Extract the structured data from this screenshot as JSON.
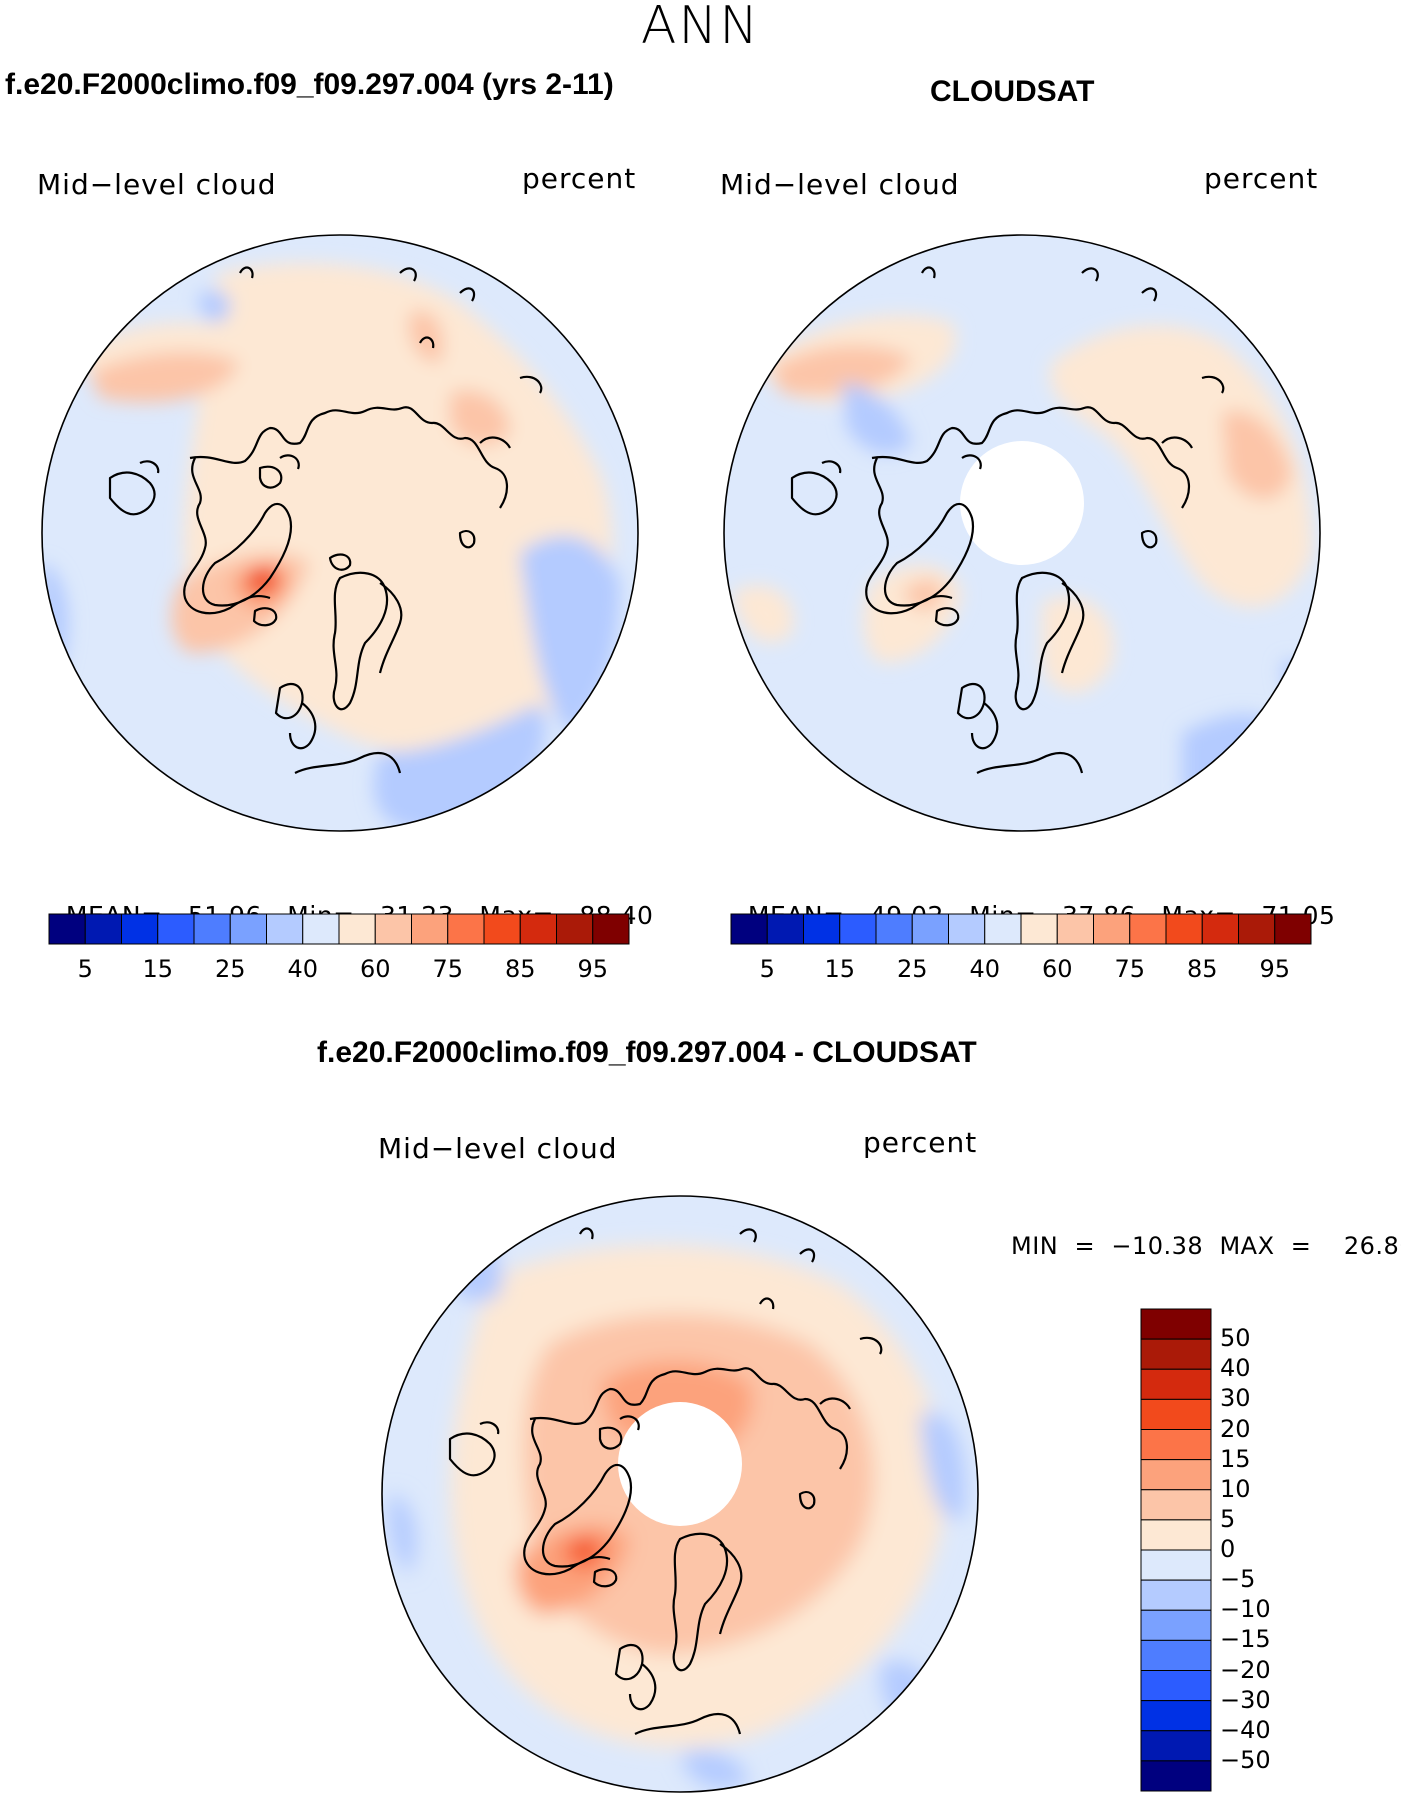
{
  "season": "ANN",
  "panels": [
    {
      "title": "f.e20.F2000climo.f09_f09.297.004 (yrs 2-11)",
      "variable": "Mid−level cloud",
      "units": "percent",
      "stats": {
        "mean_label": "MEAN=",
        "mean": "51.96",
        "min_label": "Min=",
        "min": "31.23",
        "max_label": "Max=",
        "max": "88.40"
      },
      "hole": false
    },
    {
      "title": "CLOUDSAT",
      "variable": "Mid−level cloud",
      "units": "percent",
      "stats": {
        "mean_label": "MEAN=",
        "mean": "49.02",
        "min_label": "Min=",
        "min": "37.86",
        "max_label": "Max=",
        "max": "71.05"
      },
      "hole": true
    }
  ],
  "abs_colorbar": {
    "colors": [
      "#00007f",
      "#0019b2",
      "#0031e5",
      "#2c5cff",
      "#4e7dff",
      "#7aa1ff",
      "#b4cbff",
      "#dde9fc",
      "#fde8d4",
      "#fcc5a8",
      "#fca27c",
      "#fc7448",
      "#f24a1c",
      "#d42a0e",
      "#aa1a08",
      "#7f0000"
    ],
    "tick_labels": [
      "5",
      "15",
      "25",
      "40",
      "60",
      "75",
      "85",
      "95"
    ]
  },
  "diff": {
    "title": "f.e20.F2000climo.f09_f09.297.004 - CLOUDSAT",
    "variable": "Mid−level cloud",
    "units": "percent",
    "minmax": "MIN  =  −10.38  MAX  =    26.80",
    "colors": [
      "#00007f",
      "#0019b2",
      "#0031e5",
      "#2c5cff",
      "#4e7dff",
      "#7aa1ff",
      "#b4cbff",
      "#dde9fc",
      "#fde8d4",
      "#fcc5a8",
      "#fca27c",
      "#fc7448",
      "#f24a1c",
      "#d42a0e",
      "#aa1a08",
      "#7f0000"
    ],
    "tick_labels": [
      "50",
      "40",
      "30",
      "20",
      "15",
      "10",
      "5",
      "0",
      "−5",
      "−10",
      "−15",
      "−20",
      "−30",
      "−40",
      "−50"
    ]
  }
}
